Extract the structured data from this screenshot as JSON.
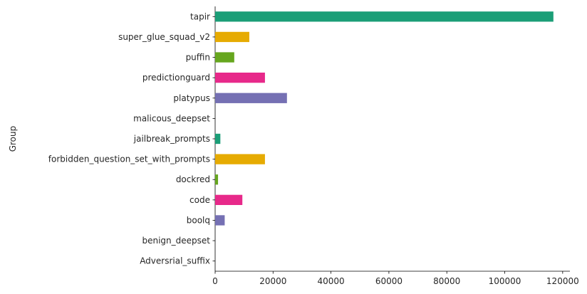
{
  "chart_data": {
    "type": "bar",
    "orientation": "horizontal",
    "title": "",
    "xlabel": "",
    "ylabel": "Group",
    "categories": [
      "tapir",
      "super_glue_squad_v2",
      "puffin",
      "predictionguard",
      "platypus",
      "malicous_deepset",
      "jailbreak_prompts",
      "forbidden_question_set_with_prompts",
      "dockred",
      "code",
      "boolq",
      "benign_deepset",
      "Adversrial_suffix"
    ],
    "values": [
      116800,
      11800,
      6600,
      17200,
      24800,
      0,
      1800,
      17200,
      1000,
      9400,
      3300,
      0,
      0
    ],
    "colors": [
      "#1b9e77",
      "#e6ab02",
      "#66a61e",
      "#e7298a",
      "#7570b3",
      "#1b9e77",
      "#1b9e77",
      "#e6ab02",
      "#66a61e",
      "#e7298a",
      "#7570b3",
      "#1b9e77",
      "#1b9e77"
    ],
    "xlim": [
      0,
      122500
    ],
    "xticks": [
      0,
      20000,
      40000,
      60000,
      80000,
      100000,
      120000
    ],
    "xtick_labels": [
      "0",
      "20000",
      "40000",
      "60000",
      "80000",
      "100000",
      "120000"
    ],
    "grid": false,
    "legend": "none",
    "spines": "left-bottom"
  }
}
